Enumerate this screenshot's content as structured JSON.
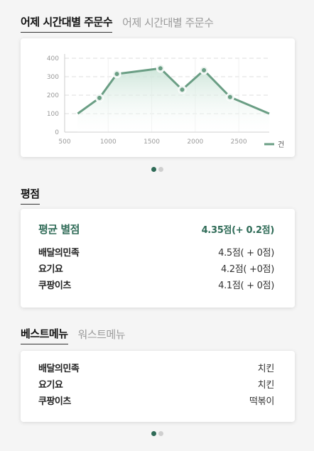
{
  "orders_tabs": {
    "active": "어제 시간대별 주문수",
    "inactive": "어제 시간대별 주문수"
  },
  "chart_data": {
    "type": "area",
    "x": [
      650,
      900,
      1100,
      1600,
      1850,
      2100,
      2400,
      2850
    ],
    "series": [
      {
        "name": "건",
        "values": [
          100,
          185,
          315,
          345,
          230,
          335,
          190,
          100
        ]
      }
    ],
    "xticks": [
      "500",
      "1000",
      "1500",
      "2000",
      "2500"
    ],
    "xtick_values": [
      500,
      1000,
      1500,
      2000,
      2500
    ],
    "yticks": [
      "0",
      "100",
      "200",
      "300",
      "400"
    ],
    "ytick_values": [
      0,
      100,
      200,
      300,
      400
    ],
    "xlim": [
      500,
      2850
    ],
    "ylim": [
      0,
      400
    ],
    "grid": true,
    "legend": "bottom-right",
    "colors": {
      "line": "#6a9e84",
      "fill": "#cfe6db",
      "point": "#6a9e84"
    }
  },
  "pagination_top": {
    "count": 2,
    "active": 0
  },
  "rating": {
    "title": "평점",
    "average": {
      "label": "평균 별점",
      "value": "4.35점(+ 0.2점)"
    },
    "items": [
      {
        "label": "배달의민족",
        "value": "4.5점( + 0점)"
      },
      {
        "label": "요기요",
        "value": "4.2점( +0점)"
      },
      {
        "label": "쿠팡이츠",
        "value": "4.1점( + 0점)"
      }
    ]
  },
  "menu_tabs": {
    "active": "베스트메뉴",
    "inactive": "워스트메뉴"
  },
  "best_menu": {
    "items": [
      {
        "label": "배달의민족",
        "value": "치킨"
      },
      {
        "label": "요기요",
        "value": "치킨"
      },
      {
        "label": "쿠팡이츠",
        "value": "떡볶이"
      }
    ]
  },
  "pagination_bottom": {
    "count": 2,
    "active": 0
  }
}
